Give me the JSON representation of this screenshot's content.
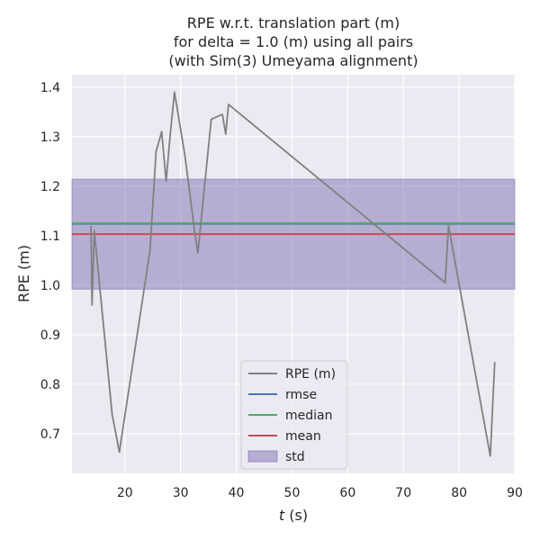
{
  "chart_data": {
    "type": "line",
    "title_lines": [
      "RPE w.r.t. translation part (m)",
      "for delta = 1.0 (m) using all pairs",
      "(with Sim(3) Umeyama alignment)"
    ],
    "xlabel_italic": "t",
    "xlabel_rest": " (s)",
    "ylabel": "RPE (m)",
    "xlim": [
      10.5,
      90
    ],
    "ylim": [
      0.62,
      1.425
    ],
    "xticks": [
      20,
      30,
      40,
      50,
      60,
      70,
      80,
      90
    ],
    "yticks": [
      0.7,
      0.8,
      0.9,
      1.0,
      1.1,
      1.2,
      1.3,
      1.4
    ],
    "grid": true,
    "legend_position": "lower-center",
    "legend": [
      "RPE (m)",
      "rmse",
      "median",
      "mean",
      "std"
    ],
    "series": [
      {
        "name": "RPE (m)",
        "color": "#808080",
        "x": [
          13.9,
          14.1,
          14.5,
          17.7,
          19.0,
          24.5,
          25.6,
          26.6,
          27.4,
          28.1,
          28.9,
          30.8,
          32.5,
          33.1,
          35.5,
          37.5,
          38.1,
          38.6,
          77.5,
          78.1,
          85.6,
          86.4
        ],
        "y": [
          1.12,
          0.96,
          1.11,
          0.74,
          0.663,
          1.07,
          1.27,
          1.31,
          1.21,
          1.3,
          1.39,
          1.26,
          1.11,
          1.065,
          1.335,
          1.345,
          1.305,
          1.365,
          1.005,
          1.12,
          0.655,
          0.845
        ]
      }
    ],
    "hlines": [
      {
        "name": "rmse",
        "value": 1.124,
        "color": "#4c72b0"
      },
      {
        "name": "median",
        "value": 1.125,
        "color": "#55a868"
      },
      {
        "name": "mean",
        "value": 1.103,
        "color": "#c44e52"
      }
    ],
    "band": {
      "name": "std",
      "lower": 0.992,
      "upper": 1.214,
      "color": "#8172b2"
    },
    "colors": {
      "background": "#eaeaf2",
      "grid": "#ffffff"
    }
  }
}
